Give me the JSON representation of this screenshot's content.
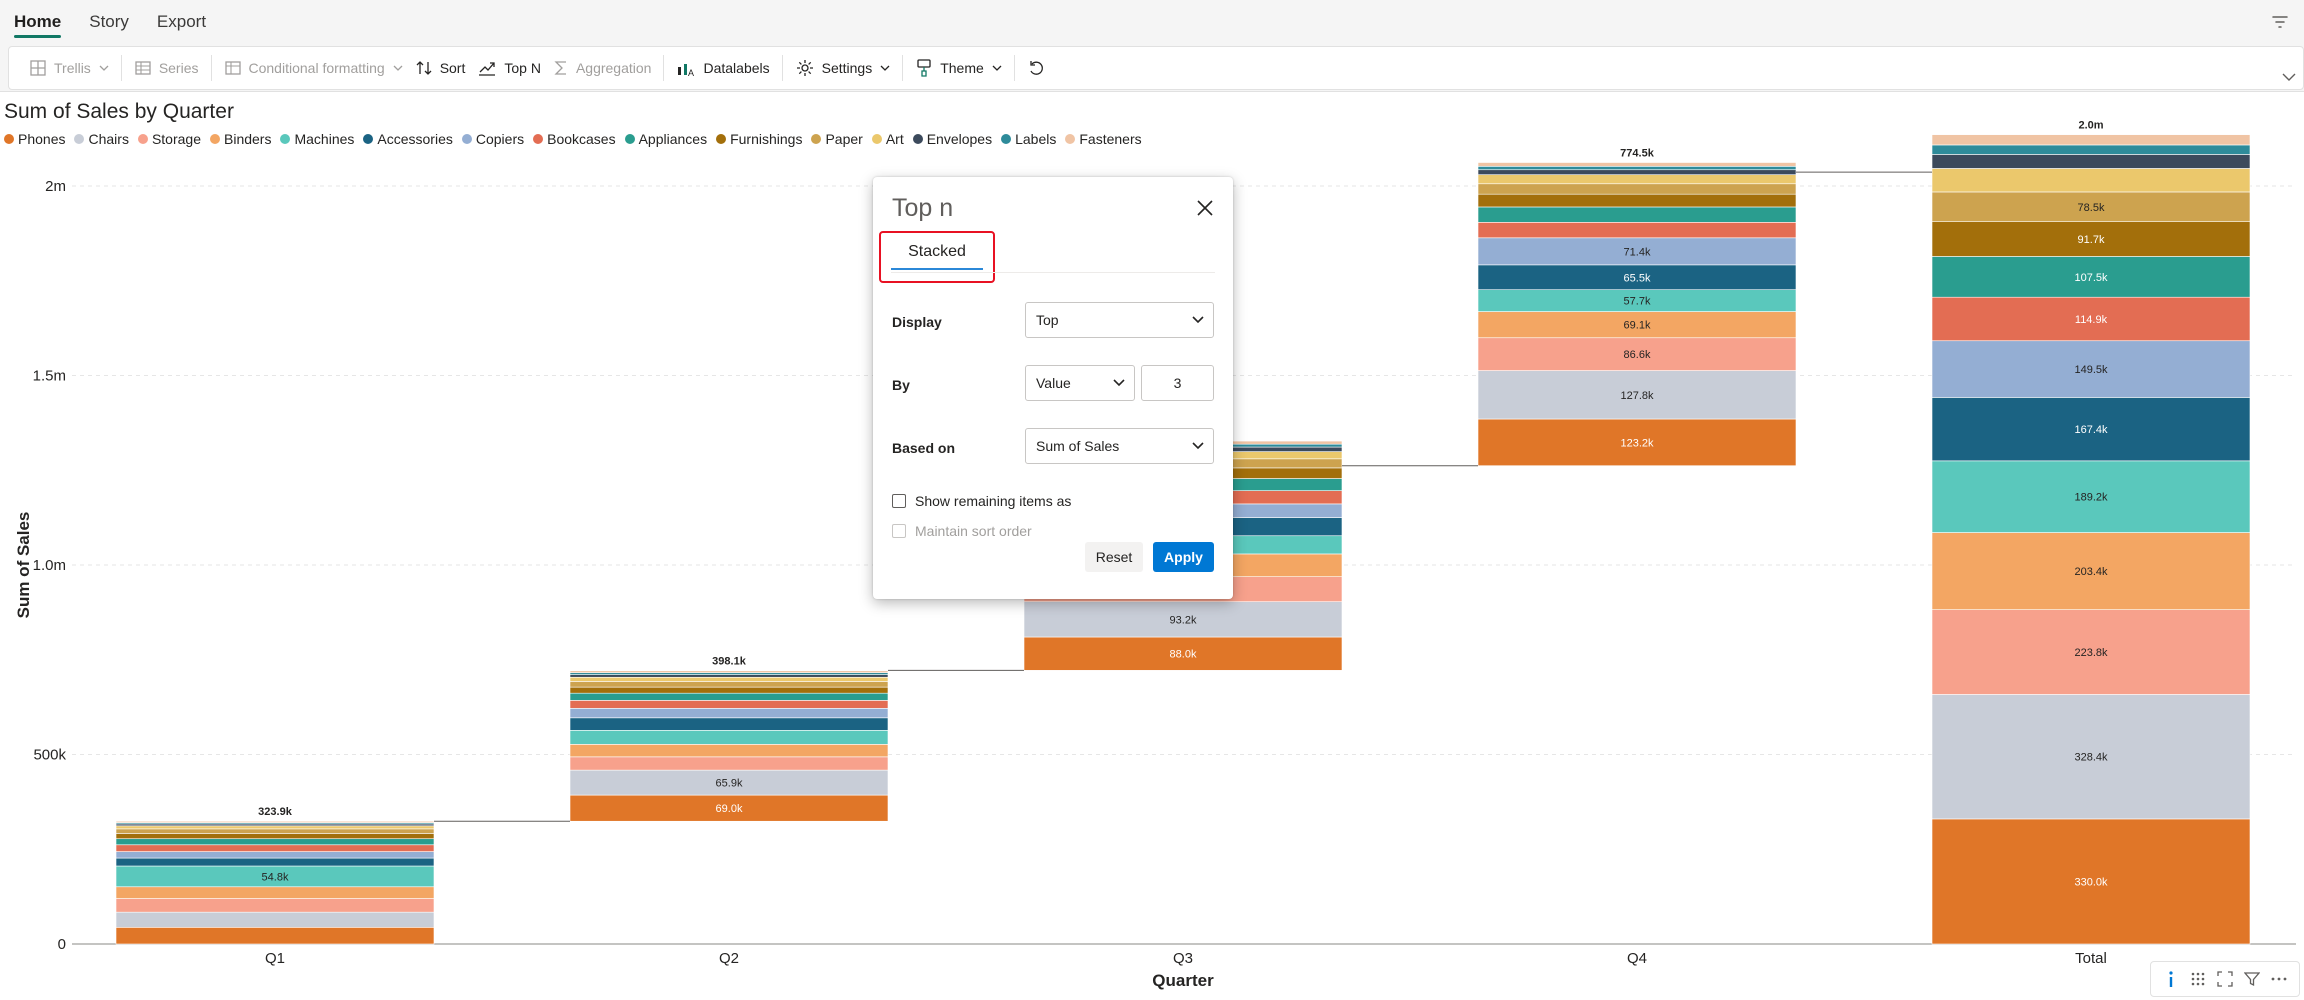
{
  "menu": {
    "tabs": [
      "Home",
      "Story",
      "Export"
    ]
  },
  "toolbar": {
    "trellis": "Trellis",
    "series": "Series",
    "conditional_formatting": "Conditional formatting",
    "sort": "Sort",
    "top_n": "Top N",
    "aggregation": "Aggregation",
    "datalabels": "Datalabels",
    "settings": "Settings",
    "theme": "Theme"
  },
  "dialog": {
    "title": "Top n",
    "tab": "Stacked",
    "display_label": "Display",
    "display_value": "Top",
    "by_label": "By",
    "by_value": "Value",
    "by_count": "3",
    "based_on_label": "Based on",
    "based_on_value": "Sum of Sales",
    "show_remaining": "Show remaining items as",
    "maintain_sort": "Maintain sort order",
    "reset": "Reset",
    "apply": "Apply"
  },
  "icons": [
    "filter-icon",
    "grid-icon",
    "sort-icon",
    "top-n-icon",
    "sigma-icon",
    "datalabels-icon",
    "gear-icon",
    "paint-brush-icon",
    "undo-icon",
    "close-icon",
    "chevron-down-icon",
    "info-icon",
    "focus-icon",
    "expand-icon",
    "more-icon"
  ],
  "chart_data": {
    "type": "bar",
    "variant": "stacked waterfall",
    "title": "Sum of Sales by Quarter",
    "xlabel": "Quarter",
    "ylabel": "Sum of Sales",
    "categories": [
      "Q1",
      "Q2",
      "Q3",
      "Q4",
      "Total"
    ],
    "y_ticks": [
      {
        "value": 0,
        "label": "0"
      },
      {
        "value": 500000,
        "label": "500k"
      },
      {
        "value": 1000000,
        "label": "1.0m"
      },
      {
        "value": 1500000,
        "label": "1.5m"
      },
      {
        "value": 2000000,
        "label": "2m"
      }
    ],
    "ylim": [
      0,
      2000000
    ],
    "grid": "horizontal dashed",
    "legend_position": "top-left",
    "bases": [
      0,
      323900,
      722000,
      1262000,
      0
    ],
    "totals": [
      323900,
      398100,
      540000,
      774500,
      2000000
    ],
    "total_labels": [
      "323.9k",
      "398.1k",
      "",
      "774.5k",
      "2.0m"
    ],
    "series": [
      {
        "name": "Phones",
        "color": "#e07628",
        "values": [
          44000,
          69000,
          88000,
          123200,
          330000
        ],
        "labels": [
          "",
          "69.0k",
          "88.0k",
          "123.2k",
          "330.0k"
        ]
      },
      {
        "name": "Chairs",
        "color": "#c8cdd7",
        "values": [
          40000,
          65900,
          93200,
          127800,
          328400
        ],
        "labels": [
          "",
          "65.9k",
          "93.2k",
          "127.8k",
          "328.4k"
        ]
      },
      {
        "name": "Storage",
        "color": "#f7a18c",
        "values": [
          36000,
          35000,
          66000,
          86600,
          223800
        ],
        "labels": [
          "",
          "",
          "",
          "86.6k",
          "223.8k"
        ]
      },
      {
        "name": "Binders",
        "color": "#f3a663",
        "values": [
          31000,
          33000,
          60000,
          69100,
          203400
        ],
        "labels": [
          "",
          "",
          "",
          "69.1k",
          "203.4k"
        ]
      },
      {
        "name": "Machines",
        "color": "#5ac8bc",
        "values": [
          54800,
          37000,
          48000,
          57700,
          189200
        ],
        "labels": [
          "54.8k",
          "",
          "",
          "57.7k",
          "189.2k"
        ]
      },
      {
        "name": "Accessories",
        "color": "#1b6383",
        "values": [
          21000,
          33000,
          48000,
          65500,
          167400
        ],
        "labels": [
          "",
          "",
          "",
          "65.5k",
          "167.4k"
        ]
      },
      {
        "name": "Copiers",
        "color": "#94aed3",
        "values": [
          17000,
          25000,
          36000,
          71400,
          149500
        ],
        "labels": [
          "",
          "",
          "",
          "71.4k",
          "149.5k"
        ]
      },
      {
        "name": "Bookcases",
        "color": "#e36d53",
        "values": [
          18000,
          21000,
          35000,
          40900,
          114900
        ],
        "labels": [
          "",
          "",
          "",
          "",
          "114.9k"
        ]
      },
      {
        "name": "Appliances",
        "color": "#2a9d8f",
        "values": [
          16000,
          19000,
          32000,
          40500,
          107500
        ],
        "labels": [
          "",
          "",
          "",
          "",
          "107.5k"
        ]
      },
      {
        "name": "Furnishings",
        "color": "#a36f0b",
        "values": [
          14000,
          16000,
          28000,
          33700,
          91700
        ],
        "labels": [
          "",
          "",
          "",
          "",
          "91.7k"
        ]
      },
      {
        "name": "Paper",
        "color": "#cda34f",
        "values": [
          12000,
          15000,
          24000,
          27500,
          78500
        ],
        "labels": [
          "",
          "",
          "",
          "",
          "78.5k"
        ]
      },
      {
        "name": "Art",
        "color": "#ebc86c",
        "values": [
          8000,
          11000,
          19000,
          24000,
          62000
        ],
        "labels": [
          "",
          "",
          "",
          "",
          ""
        ]
      },
      {
        "name": "Envelopes",
        "color": "#3c4a5c",
        "values": [
          5000,
          7000,
          12000,
          13000,
          37000
        ],
        "labels": [
          "",
          "",
          "",
          "",
          ""
        ]
      },
      {
        "name": "Labels",
        "color": "#2e8b9a",
        "values": [
          3500,
          5000,
          7500,
          9000,
          25000
        ],
        "labels": [
          "",
          "",
          "",
          "",
          ""
        ]
      },
      {
        "name": "Fasteners",
        "color": "#f0c4a4",
        "values": [
          3600,
          5200,
          8300,
          10100,
          27200
        ],
        "labels": [
          "",
          "",
          "",
          "",
          ""
        ]
      }
    ]
  }
}
